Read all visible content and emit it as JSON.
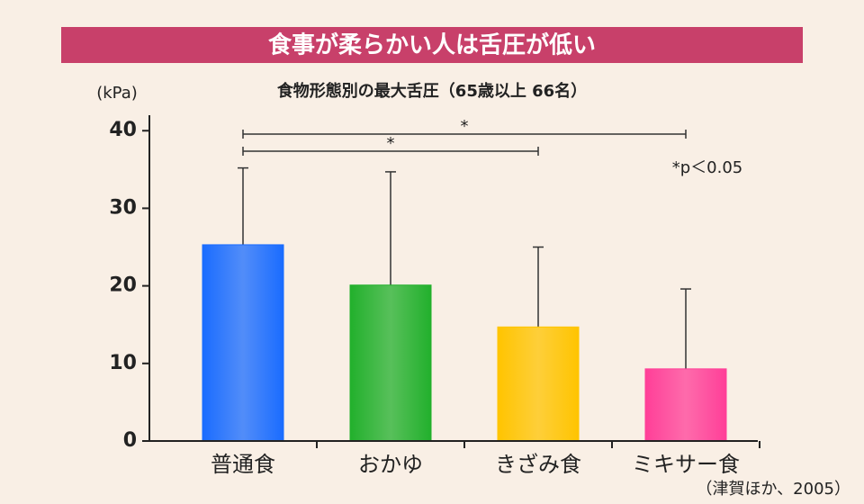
{
  "chart_data": {
    "type": "bar",
    "title": "食事が柔らかい人は舌圧が低い",
    "subtitle": "食物形態別の最大舌圧（65歳以上 66名）",
    "y_label": "(kPa)",
    "note": "*p＜0.05",
    "source": "（津賀ほか、2005）",
    "categories": [
      "普通食",
      "おかゆ",
      "きざみ食",
      "ミキサー食"
    ],
    "values": [
      25.3,
      20.1,
      14.7,
      9.3
    ],
    "errors": [
      9.9,
      14.6,
      10.3,
      10.3
    ],
    "colors": [
      "#1a6cff",
      "#22b02c",
      "#ffc400",
      "#ff3f98"
    ],
    "ylim": [
      0,
      42
    ],
    "yticks": [
      0,
      10,
      20,
      30,
      40
    ],
    "significance": [
      {
        "from": 0,
        "to": 3,
        "label": "*"
      },
      {
        "from": 0,
        "to": 2,
        "label": "*"
      }
    ]
  }
}
